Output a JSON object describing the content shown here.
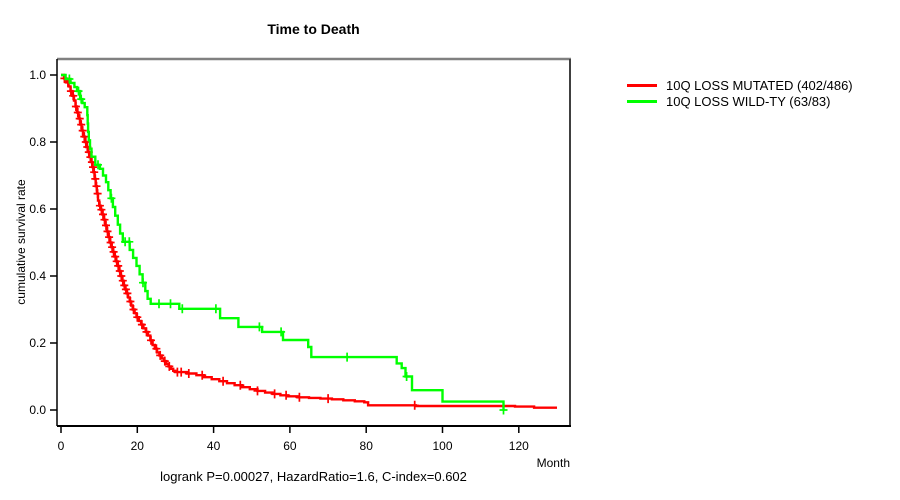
{
  "window": {
    "background": "#ffffff"
  },
  "colors": {
    "axis": "#000000",
    "box_top": "#808080",
    "box_right": "#404040",
    "tick_text": "#000000",
    "red_series": "#ff0000",
    "green_series": "#00ff00"
  },
  "chart_data": {
    "type": "line",
    "subtype": "kaplan_meier_survival_step",
    "title": "Time to Death",
    "xlabel": "Month",
    "ylabel": "cumulative survival rate",
    "footnote": "logrank P=0.00027, HazardRatio=1.6, C-index=0.602",
    "xlim": [
      0,
      134
    ],
    "ylim": [
      0,
      1.04
    ],
    "xticks": [
      0,
      20,
      40,
      60,
      80,
      100,
      120
    ],
    "yticks": [
      0.0,
      0.2,
      0.4,
      0.6,
      0.8,
      1.0
    ],
    "grid": false,
    "legend_position": "right-outside",
    "series": [
      {
        "name": "10Q LOSS MUTATED (402/486)",
        "color": "#ff0000",
        "steps": [
          [
            0,
            1
          ],
          [
            0.8,
            0.99
          ],
          [
            1.4,
            0.978
          ],
          [
            2,
            0.966
          ],
          [
            2.5,
            0.952
          ],
          [
            3,
            0.938
          ],
          [
            3.4,
            0.924
          ],
          [
            3.8,
            0.906
          ],
          [
            4.2,
            0.888
          ],
          [
            4.6,
            0.87
          ],
          [
            5,
            0.852
          ],
          [
            5.4,
            0.834
          ],
          [
            5.8,
            0.816
          ],
          [
            6.2,
            0.8
          ],
          [
            6.6,
            0.785
          ],
          [
            7,
            0.77
          ],
          [
            7.4,
            0.755
          ],
          [
            7.8,
            0.74
          ],
          [
            8.2,
            0.725
          ],
          [
            8.5,
            0.71
          ],
          [
            8.8,
            0.69
          ],
          [
            9.1,
            0.668
          ],
          [
            9.4,
            0.646
          ],
          [
            9.7,
            0.625
          ],
          [
            10,
            0.61
          ],
          [
            10.4,
            0.598
          ],
          [
            10.8,
            0.584
          ],
          [
            11.2,
            0.568
          ],
          [
            11.6,
            0.551
          ],
          [
            12,
            0.533
          ],
          [
            12.4,
            0.516
          ],
          [
            12.8,
            0.5
          ],
          [
            13.2,
            0.486
          ],
          [
            13.6,
            0.472
          ],
          [
            14,
            0.458
          ],
          [
            14.4,
            0.444
          ],
          [
            14.8,
            0.43
          ],
          [
            15.2,
            0.415
          ],
          [
            15.6,
            0.4
          ],
          [
            16,
            0.386
          ],
          [
            16.4,
            0.372
          ],
          [
            16.8,
            0.36
          ],
          [
            17.2,
            0.348
          ],
          [
            17.6,
            0.336
          ],
          [
            18,
            0.324
          ],
          [
            18.4,
            0.312
          ],
          [
            18.8,
            0.3
          ],
          [
            19.3,
            0.289
          ],
          [
            19.8,
            0.277
          ],
          [
            20.4,
            0.266
          ],
          [
            21,
            0.255
          ],
          [
            21.6,
            0.244
          ],
          [
            22.2,
            0.233
          ],
          [
            22.8,
            0.222
          ],
          [
            23.4,
            0.208
          ],
          [
            24,
            0.194
          ],
          [
            24.6,
            0.183
          ],
          [
            25.2,
            0.172
          ],
          [
            25.8,
            0.163
          ],
          [
            26.4,
            0.154
          ],
          [
            27,
            0.146
          ],
          [
            27.6,
            0.138
          ],
          [
            28.2,
            0.13
          ],
          [
            28.8,
            0.123
          ],
          [
            29.4,
            0.117
          ],
          [
            30,
            0.113
          ],
          [
            33,
            0.109
          ],
          [
            35.5,
            0.104
          ],
          [
            37.5,
            0.098
          ],
          [
            39.5,
            0.092
          ],
          [
            41.5,
            0.086
          ],
          [
            43.5,
            0.08
          ],
          [
            45.5,
            0.074
          ],
          [
            47.5,
            0.068
          ],
          [
            49.5,
            0.062
          ],
          [
            51.5,
            0.057
          ],
          [
            53.5,
            0.052
          ],
          [
            55.5,
            0.048
          ],
          [
            57.5,
            0.044
          ],
          [
            59.5,
            0.041
          ],
          [
            62,
            0.038
          ],
          [
            65,
            0.036
          ],
          [
            68,
            0.034
          ],
          [
            71,
            0.032
          ],
          [
            74,
            0.029
          ],
          [
            77,
            0.026
          ],
          [
            79.5,
            0.023
          ],
          [
            80.5,
            0.014
          ],
          [
            93,
            0.012
          ],
          [
            119,
            0.01
          ],
          [
            124,
            0.007
          ],
          [
            130,
            0.007
          ]
        ],
        "censor_times": [
          0.9,
          1.8,
          2.6,
          3.2,
          3.9,
          4.4,
          4.9,
          5.3,
          5.7,
          6.1,
          6.5,
          6.9,
          7.3,
          7.7,
          8.1,
          8.4,
          8.7,
          9,
          9.3,
          9.6,
          10.2,
          10.6,
          11,
          11.4,
          11.8,
          12.2,
          12.6,
          13,
          13.4,
          13.8,
          14.2,
          14.6,
          15,
          15.4,
          15.8,
          16.2,
          16.6,
          17,
          17.4,
          18.2,
          19,
          20,
          21.2,
          22.4,
          23.6,
          25,
          26,
          27.2,
          28.4,
          30.5,
          31.5,
          33.5,
          37,
          42.5,
          47,
          51.5,
          56,
          59,
          62.5,
          70,
          92.7
        ]
      },
      {
        "name": "10Q LOSS WILD-TY (63/83)",
        "color": "#00ff00",
        "steps": [
          [
            0,
            1
          ],
          [
            1.2,
            0.988
          ],
          [
            2.5,
            0.976
          ],
          [
            3.5,
            0.964
          ],
          [
            4.2,
            0.952
          ],
          [
            5,
            0.928
          ],
          [
            5.6,
            0.916
          ],
          [
            6.2,
            0.904
          ],
          [
            6.9,
            0.88
          ],
          [
            7,
            0.855
          ],
          [
            7.1,
            0.83
          ],
          [
            7.3,
            0.805
          ],
          [
            7.6,
            0.78
          ],
          [
            8,
            0.756
          ],
          [
            9,
            0.732
          ],
          [
            10.2,
            0.72
          ],
          [
            11,
            0.7
          ],
          [
            11.8,
            0.68
          ],
          [
            12.4,
            0.656
          ],
          [
            13,
            0.632
          ],
          [
            13.6,
            0.606
          ],
          [
            14.2,
            0.58
          ],
          [
            14.9,
            0.553
          ],
          [
            15.5,
            0.527
          ],
          [
            16.2,
            0.502
          ],
          [
            18,
            0.478
          ],
          [
            18.9,
            0.454
          ],
          [
            19.8,
            0.43
          ],
          [
            20.6,
            0.405
          ],
          [
            21.4,
            0.38
          ],
          [
            22.1,
            0.355
          ],
          [
            22.7,
            0.332
          ],
          [
            23.5,
            0.317
          ],
          [
            31,
            0.302
          ],
          [
            41.7,
            0.274
          ],
          [
            46.5,
            0.248
          ],
          [
            52.7,
            0.233
          ],
          [
            58.2,
            0.209
          ],
          [
            64.8,
            0.188
          ],
          [
            65.6,
            0.158
          ],
          [
            88,
            0.139
          ],
          [
            89.3,
            0.125
          ],
          [
            90.3,
            0.1
          ],
          [
            92,
            0.059
          ],
          [
            100,
            0.025
          ],
          [
            116,
            0
          ]
        ],
        "censor_times": [
          2.2,
          4.6,
          5.3,
          9.7,
          13.2,
          16.8,
          17.9,
          21.5,
          25.7,
          28.7,
          31.8,
          40.6,
          52,
          57.7,
          75,
          90.6,
          116
        ]
      }
    ]
  }
}
